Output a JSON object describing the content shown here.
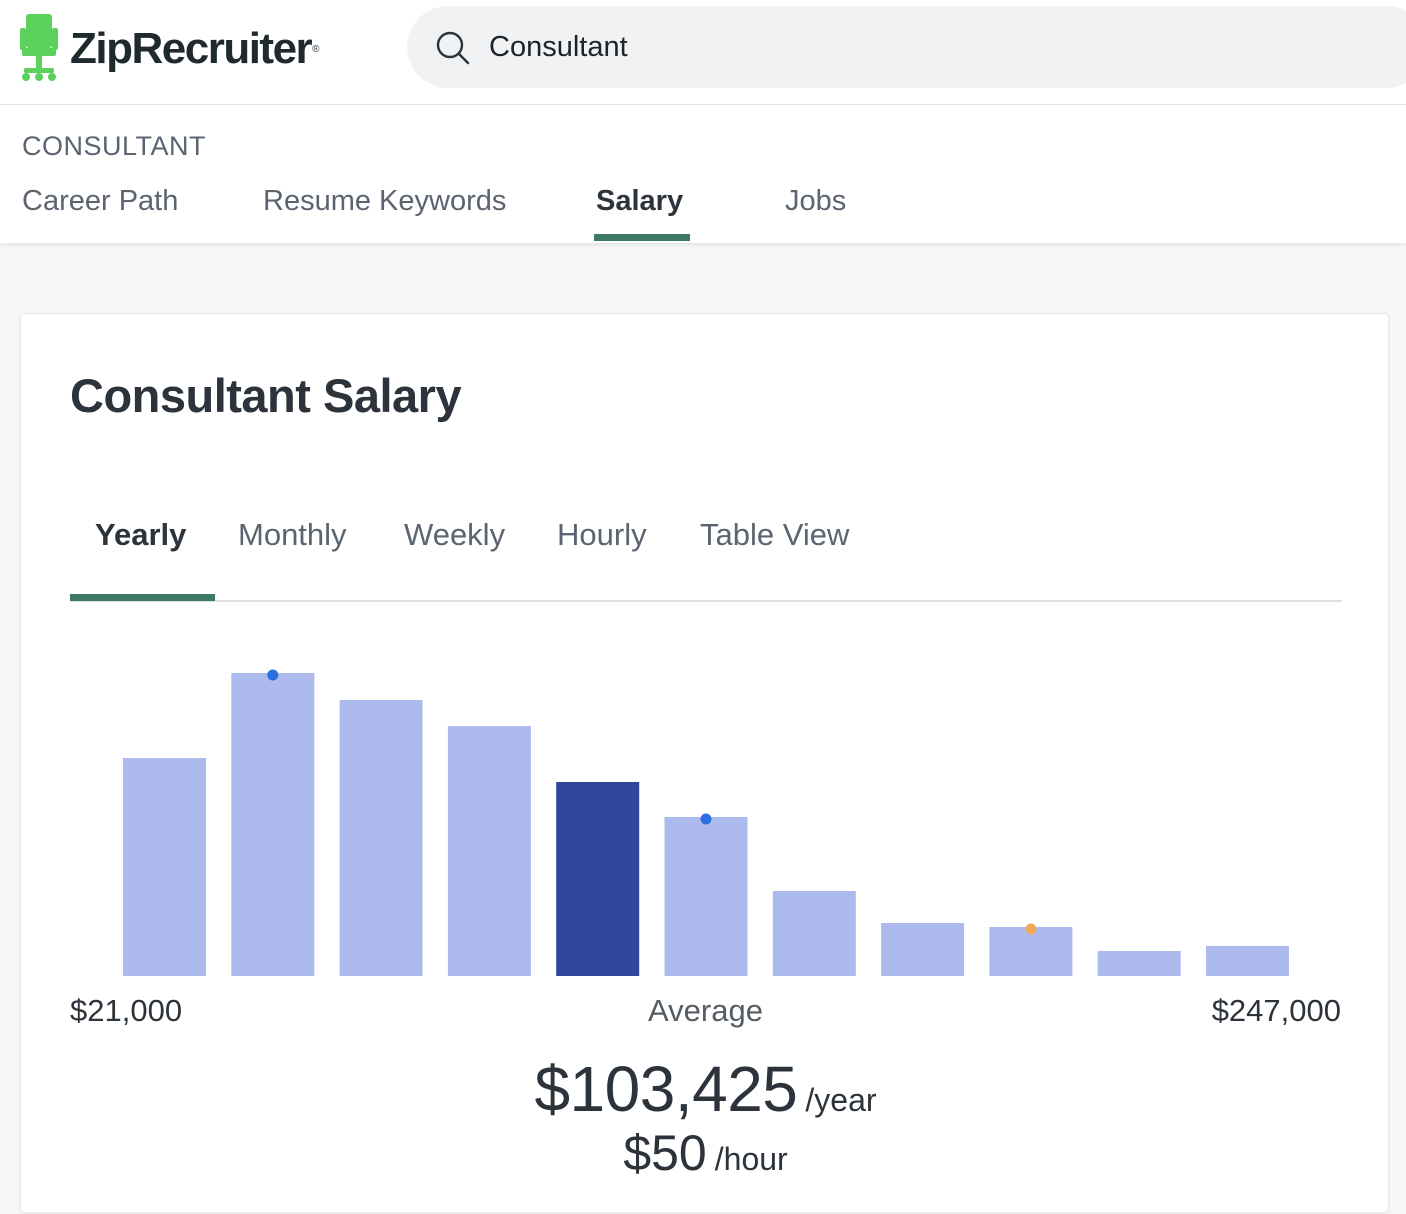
{
  "header": {
    "brand": "ZipRecruiter",
    "brand_reg": "®",
    "search_value": "Consultant",
    "search_icon": "search-icon"
  },
  "subnav": {
    "crumb": "CONSULTANT",
    "tabs": [
      {
        "label": "Career Path",
        "active": false
      },
      {
        "label": "Resume Keywords",
        "active": false
      },
      {
        "label": "Salary",
        "active": true
      },
      {
        "label": "Jobs",
        "active": false
      }
    ]
  },
  "card": {
    "title": "Consultant Salary",
    "period_tabs": [
      {
        "label": "Yearly",
        "active": true
      },
      {
        "label": "Monthly",
        "active": false
      },
      {
        "label": "Weekly",
        "active": false
      },
      {
        "label": "Hourly",
        "active": false
      },
      {
        "label": "Table View",
        "active": false
      }
    ],
    "range_min": "$21,000",
    "range_max": "$247,000",
    "average_label": "Average",
    "average_yearly": "$103,425",
    "average_yearly_unit": "/year",
    "average_hourly": "$50",
    "average_hourly_unit": "/hour"
  },
  "colors": {
    "accent": "#3e7b67",
    "bar": "#adbaed",
    "bar_highlight": "#30489c",
    "marker_blue": "#2b6fe0",
    "marker_orange": "#f2a957"
  },
  "chart_data": {
    "type": "bar",
    "x_range": [
      21000,
      247000
    ],
    "categories": [
      "1",
      "2",
      "3",
      "4",
      "5",
      "6",
      "7",
      "8",
      "9",
      "10",
      "11"
    ],
    "values": [
      218,
      303,
      276,
      250,
      194,
      159,
      85,
      53,
      49,
      25,
      30
    ],
    "value_scale": "relative frequency",
    "highlight_index": 4,
    "markers": [
      {
        "bar_index": 1,
        "color": "blue"
      },
      {
        "bar_index": 5,
        "color": "blue"
      },
      {
        "bar_index": 8,
        "color": "orange"
      }
    ],
    "xlabel_left": "$21,000",
    "xlabel_center": "Average",
    "xlabel_right": "$247,000"
  }
}
